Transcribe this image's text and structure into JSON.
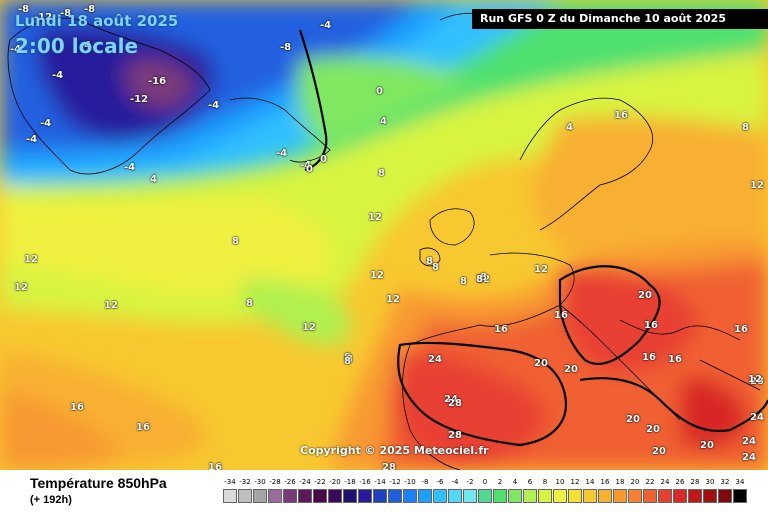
{
  "header": {
    "date_line": "Lundi 18 août 2025",
    "time_line": "2:00 locale",
    "run_info": "Run GFS 0 Z du Dimanche 10 août 2025"
  },
  "copyright": "Copyright © 2025 Meteociel.fr",
  "footer": {
    "variable_title": "Température 850hPa",
    "lead_time": "(+ 192h)"
  },
  "legend": {
    "values": [
      "-34",
      "-32",
      "-30",
      "-28",
      "-26",
      "-24",
      "-22",
      "-20",
      "-18",
      "-16",
      "-14",
      "-12",
      "-10",
      "-8",
      "-6",
      "-4",
      "-2",
      "0",
      "2",
      "4",
      "6",
      "8",
      "10",
      "12",
      "14",
      "16",
      "18",
      "20",
      "22",
      "24",
      "26",
      "28",
      "30",
      "32",
      "34"
    ],
    "colors": [
      "#d9d9d9",
      "#bfbfbf",
      "#a6a6a6",
      "#9a6a9a",
      "#7a3a7a",
      "#5c1a5c",
      "#4a0a4a",
      "#3a0a5a",
      "#201070",
      "#281a9c",
      "#2040c0",
      "#2060e0",
      "#1a80ff",
      "#1aa0ff",
      "#30c0ff",
      "#50d8ff",
      "#70e8f0",
      "#4fd890",
      "#50e070",
      "#80e860",
      "#b0f050",
      "#d8f440",
      "#f0f040",
      "#f8e030",
      "#f8c830",
      "#f8b030",
      "#f89830",
      "#f88030",
      "#f06030",
      "#e84030",
      "#d82828",
      "#c01818",
      "#a01010",
      "#800808",
      "#000000"
    ]
  },
  "isotherm_labels": [
    "-8",
    "-12",
    "-8",
    "-4",
    "-4",
    "-4",
    "-4",
    "-8",
    "-4",
    "-16",
    "-12",
    "-4",
    "-4",
    "-8",
    "-4",
    "-4",
    "4",
    "0",
    "-4",
    "4",
    "0",
    "0",
    "8",
    "4",
    "8",
    "12",
    "12",
    "8",
    "8",
    "12",
    "12",
    "8",
    "12",
    "12",
    "12",
    "12",
    "12",
    "16",
    "8",
    "8",
    "8",
    "12",
    "16",
    "16",
    "16",
    "20",
    "16",
    "16",
    "16",
    "20",
    "20",
    "24",
    "24",
    "28",
    "28",
    "28",
    "20",
    "20",
    "20",
    "20",
    "24",
    "24",
    "24",
    "28",
    "16",
    "16",
    "12",
    "8",
    "8",
    "8",
    "8",
    "16"
  ]
}
